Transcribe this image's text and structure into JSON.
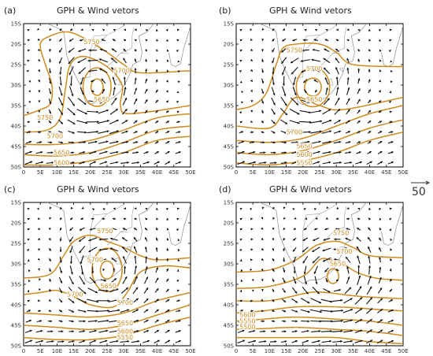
{
  "title": "GPH & Wind vetors",
  "colors": {
    "contour": "#d08a1e",
    "arrow": "#111111",
    "coast": "#9a9a9a",
    "frame": "#000000"
  },
  "axes": {
    "x_ticks": [
      "0",
      "5E",
      "10E",
      "15E",
      "20E",
      "25E",
      "30E",
      "35E",
      "40E",
      "45E",
      "50E"
    ],
    "y_ticks": [
      "15S",
      "20S",
      "25S",
      "30S",
      "35S",
      "40S",
      "45S",
      "50S"
    ],
    "lon_range": [
      0,
      50
    ],
    "lat_range": [
      -50,
      -15
    ]
  },
  "reference_vector": {
    "label": "50"
  },
  "panels": [
    {
      "label": "(a)",
      "title": "GPH & Wind vetors",
      "contour_labels": [
        "5750",
        "5700",
        "5650",
        "5750",
        "5700",
        "5650",
        "5600"
      ],
      "low_center": {
        "lon": 22,
        "lat": -30
      }
    },
    {
      "label": "(b)",
      "title": "GPH & Wind vetors",
      "contour_labels": [
        "5750",
        "5700",
        "5650",
        "5700",
        "5650",
        "5600",
        "5550"
      ],
      "low_center": {
        "lon": 23,
        "lat": -30
      }
    },
    {
      "label": "(c)",
      "title": "GPH & Wind vetors",
      "contour_labels": [
        "5750",
        "5700",
        "5650",
        "5700",
        "5700",
        "5650",
        "5600",
        "5550"
      ],
      "low_center": {
        "lon": 25,
        "lat": -31
      }
    },
    {
      "label": "(d)",
      "title": "GPH & Wind vetors",
      "contour_labels": [
        "5750",
        "5700",
        "5650",
        "5600",
        "5550",
        "5500"
      ],
      "low_center": {
        "lon": 29,
        "lat": -33
      }
    }
  ]
}
